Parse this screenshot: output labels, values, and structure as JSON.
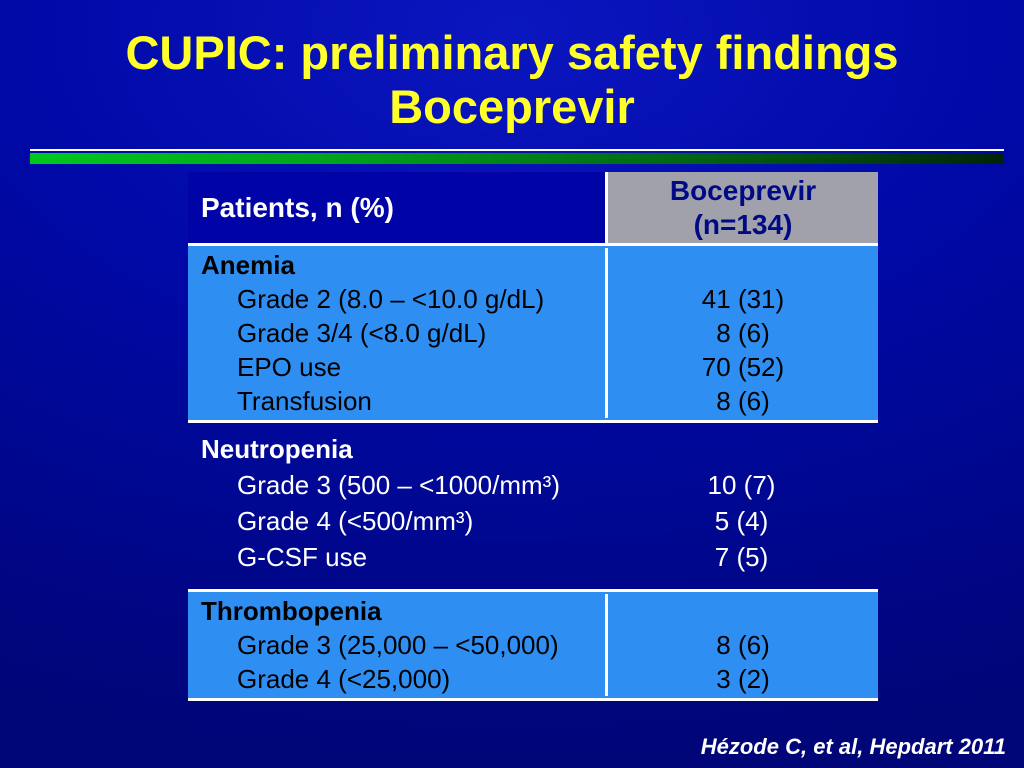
{
  "slide": {
    "title_line1": "CUPIC: preliminary safety findings",
    "title_line2": "Boceprevir",
    "citation": "Hézode C, et al, Hepdart 2011"
  },
  "table": {
    "header": {
      "patients_label": "Patients, n (%)",
      "drug_line1": "Boceprevir",
      "drug_line2": "(n=134)"
    },
    "sections": [
      {
        "title": "Anemia",
        "rows": [
          {
            "label": "Grade 2 (8.0 – <10.0 g/dL)",
            "value": "41 (31)"
          },
          {
            "label": "Grade 3/4 (<8.0 g/dL)",
            "value": "8 (6)"
          },
          {
            "label": "EPO use",
            "value": "70 (52)"
          },
          {
            "label": "Transfusion",
            "value": "8 (6)"
          }
        ]
      },
      {
        "title": "Neutropenia",
        "rows": [
          {
            "label": "Grade 3 (500 – <1000/mm³)",
            "value": "10 (7)"
          },
          {
            "label": "Grade 4 (<500/mm³)",
            "value": "5 (4)"
          },
          {
            "label": "G-CSF use",
            "value": "7 (5)"
          }
        ]
      },
      {
        "title": "Thrombopenia",
        "rows": [
          {
            "label": "Grade 3 (25,000 – <50,000)",
            "value": "8 (6)"
          },
          {
            "label": "Grade 4 (<25,000)",
            "value": "3 (2)"
          }
        ]
      }
    ]
  },
  "colors": {
    "background_blue": "#0009a6",
    "light_blue": "#2e8ef2",
    "header_gray": "#a1a1ab",
    "title_yellow": "#ffff29",
    "accent_green": "#00a51b",
    "header_text_blue": "#000a85"
  }
}
